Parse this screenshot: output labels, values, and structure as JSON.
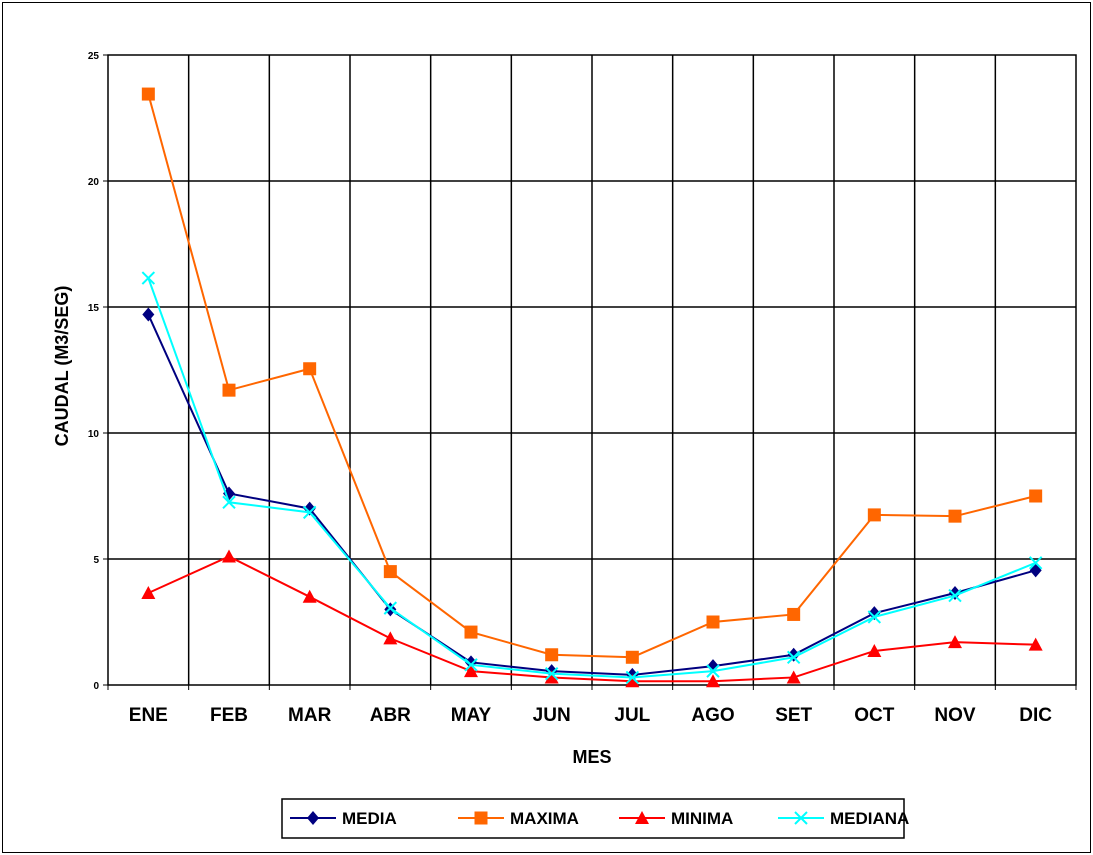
{
  "chart_data": {
    "type": "line",
    "title": "",
    "xlabel": "MES",
    "ylabel": "CAUDAL (M3/SEG)",
    "ylim": [
      0,
      25
    ],
    "yticks": [
      0,
      5,
      10,
      15,
      20,
      25
    ],
    "grid": true,
    "legend": "bottom",
    "categories": [
      "ENE",
      "FEB",
      "MAR",
      "ABR",
      "MAY",
      "JUN",
      "JUL",
      "AGO",
      "SET",
      "OCT",
      "NOV",
      "DIC"
    ],
    "series": [
      {
        "name": "MEDIA",
        "color": "#000080",
        "marker": "diamond",
        "values": [
          14.7,
          7.6,
          7.0,
          3.0,
          0.9,
          0.55,
          0.4,
          0.75,
          1.2,
          2.85,
          3.65,
          4.55
        ]
      },
      {
        "name": "MAXIMA",
        "color": "#ff6600",
        "marker": "square",
        "values": [
          23.45,
          11.7,
          12.55,
          4.5,
          2.1,
          1.2,
          1.1,
          2.5,
          2.8,
          6.75,
          6.7,
          7.5
        ]
      },
      {
        "name": "MINIMA",
        "color": "#ff0000",
        "marker": "triangle",
        "values": [
          3.65,
          5.1,
          3.5,
          1.85,
          0.55,
          0.3,
          0.15,
          0.15,
          0.3,
          1.35,
          1.7,
          1.6
        ]
      },
      {
        "name": "MEDIANA",
        "color": "#00ffff",
        "marker": "x",
        "values": [
          16.15,
          7.25,
          6.85,
          3.05,
          0.8,
          0.45,
          0.3,
          0.55,
          1.1,
          2.7,
          3.55,
          4.85
        ]
      }
    ]
  }
}
